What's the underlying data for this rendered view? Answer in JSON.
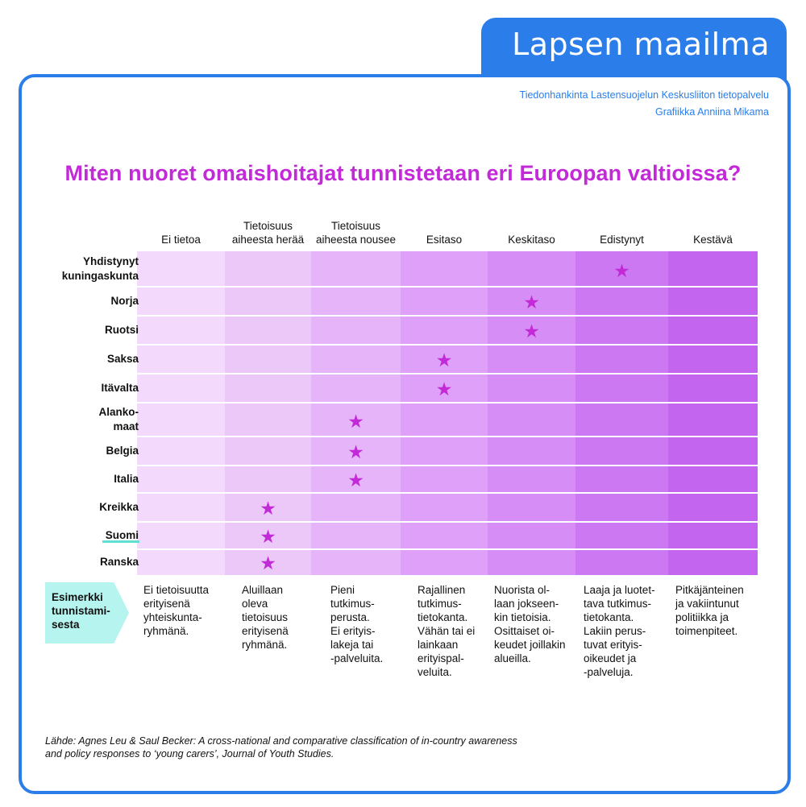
{
  "header": {
    "tab_title": "Lapsen maailma",
    "credit_line_1": "Tiedonhankinta Lastensuojelun Keskusliiton tietopalvelu",
    "credit_line_2": "Grafiikka Anniina Mikama",
    "tab_color": "#2b7de9"
  },
  "title": "Miten nuoret omaishoitajat tunnistetaan eri Euroopan valtioissa?",
  "levels": [
    {
      "line1": "",
      "line2": "Ei tietoa"
    },
    {
      "line1": "Tietoisuus",
      "line2": "aiheesta herää"
    },
    {
      "line1": "Tietoisuus",
      "line2": "aiheesta nousee"
    },
    {
      "line1": "",
      "line2": "Esitaso"
    },
    {
      "line1": "",
      "line2": "Keskitaso"
    },
    {
      "line1": "",
      "line2": "Edistynyt"
    },
    {
      "line1": "",
      "line2": "Kestävä"
    }
  ],
  "band_colors": [
    "#f3d9fb",
    "#ecc8f9",
    "#e6b4f8",
    "#dea0f8",
    "#d68ef6",
    "#cd78f3",
    "#c465f0"
  ],
  "star_color": "#c22ad8",
  "countries": [
    {
      "name_line1": "Yhdistynyt",
      "name_line2": "kuningaskunta",
      "level": 5
    },
    {
      "name_line1": "Norja",
      "name_line2": "",
      "level": 4
    },
    {
      "name_line1": "Ruotsi",
      "name_line2": "",
      "level": 4
    },
    {
      "name_line1": "Saksa",
      "name_line2": "",
      "level": 3
    },
    {
      "name_line1": "Itävalta",
      "name_line2": "",
      "level": 3
    },
    {
      "name_line1": "Alanko-",
      "name_line2": "maat",
      "level": 2
    },
    {
      "name_line1": "Belgia",
      "name_line2": "",
      "level": 2
    },
    {
      "name_line1": "Italia",
      "name_line2": "",
      "level": 2
    },
    {
      "name_line1": "Kreikka",
      "name_line2": "",
      "level": 1
    },
    {
      "name_line1": "Suomi",
      "name_line2": "",
      "level": 1
    },
    {
      "name_line1": "Ranska",
      "name_line2": "",
      "level": 1
    }
  ],
  "examples_label": [
    "Esimerkki",
    "tunnistami-",
    "sesta"
  ],
  "descriptions": [
    [
      "Ei tietoisuutta",
      "erityisenä",
      "yhteiskunta-",
      "ryhmänä."
    ],
    [
      "Aluillaan",
      "oleva",
      "tietoisuus",
      "erityisenä",
      "ryhmänä."
    ],
    [
      "Pieni",
      "tutkimus-",
      "perusta.",
      "Ei erityis-",
      "lakeja tai",
      "-palveluita."
    ],
    [
      "Rajallinen",
      "tutkimus-",
      "tietokanta.",
      "Vähän tai ei",
      "lainkaan",
      "erityispal-",
      "veluita."
    ],
    [
      "Nuorista ol-",
      "laan jokseen-",
      "kin tietoisia.",
      "Osittaiset oi-",
      "keudet joillakin",
      "alueilla."
    ],
    [
      "Laaja ja luotet-",
      "tava tutkimus-",
      "tietokanta.",
      "Lakiin perus-",
      "tuvat erityis-",
      "oikeudet ja",
      "-palveluja."
    ],
    [
      "Pitkäjänteinen",
      "ja vakiintunut",
      "politiikka ja",
      "toimenpiteet."
    ]
  ],
  "source_line_1": "Lähde: Agnes Leu & Saul Becker: A cross-national and comparative classification of in-country awareness",
  "source_line_2": "and policy responses to ‘young carers’, Journal of Youth Studies."
}
